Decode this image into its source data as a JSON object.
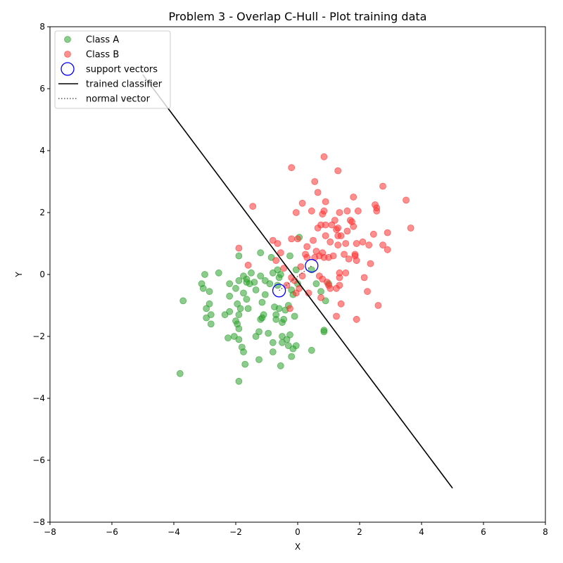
{
  "chart_data": {
    "type": "scatter",
    "title": "Problem 3 - Overlap C-Hull - Plot training data",
    "xlabel": "X",
    "ylabel": "Y",
    "xlim": [
      -8,
      8
    ],
    "ylim": [
      -8,
      8
    ],
    "xticks": [
      -8,
      -6,
      -4,
      -2,
      0,
      2,
      4,
      6,
      8
    ],
    "yticks": [
      -8,
      -6,
      -4,
      -2,
      0,
      2,
      4,
      6,
      8
    ],
    "xtick_labels": [
      "−8",
      "−6",
      "−4",
      "−2",
      "0",
      "2",
      "4",
      "6",
      "8"
    ],
    "ytick_labels": [
      "−8",
      "−6",
      "−4",
      "−2",
      "0",
      "2",
      "4",
      "6",
      "8"
    ],
    "grid": false,
    "legend_position": "top-left",
    "legend": [
      {
        "label": "Class A",
        "kind": "marker",
        "color": "#2ca02c"
      },
      {
        "label": "Class B",
        "kind": "marker",
        "color": "#ff3333"
      },
      {
        "label": "support vectors",
        "kind": "ring",
        "color": "#0000ff"
      },
      {
        "label": "trained classifier",
        "kind": "line",
        "color": "#000000"
      },
      {
        "label": "normal vector",
        "kind": "dotted",
        "color": "#555555"
      }
    ],
    "series": [
      {
        "name": "Class A",
        "color": "#2ca02c",
        "points": [
          [
            -3.8,
            -3.2
          ],
          [
            -3.7,
            -0.85
          ],
          [
            -3.1,
            -0.3
          ],
          [
            -3.05,
            -0.45
          ],
          [
            -3.0,
            0.0
          ],
          [
            -2.95,
            -1.1
          ],
          [
            -2.95,
            -1.4
          ],
          [
            -2.85,
            -0.55
          ],
          [
            -2.85,
            -0.95
          ],
          [
            -2.8,
            -1.3
          ],
          [
            -2.8,
            -1.6
          ],
          [
            -2.55,
            0.05
          ],
          [
            -2.35,
            -1.3
          ],
          [
            -2.25,
            -2.05
          ],
          [
            -2.2,
            -0.3
          ],
          [
            -2.2,
            -0.7
          ],
          [
            -2.2,
            -1.2
          ],
          [
            -2.05,
            -2.0
          ],
          [
            -2.0,
            -0.45
          ],
          [
            -2.0,
            -1.5
          ],
          [
            -1.95,
            -1.6
          ],
          [
            -1.95,
            -0.95
          ],
          [
            -1.9,
            -0.2
          ],
          [
            -1.9,
            -1.3
          ],
          [
            -1.9,
            -1.75
          ],
          [
            -1.9,
            -2.1
          ],
          [
            -1.9,
            0.6
          ],
          [
            -1.9,
            -3.45
          ],
          [
            -1.85,
            -1.1
          ],
          [
            -1.8,
            -2.35
          ],
          [
            -1.75,
            -0.05
          ],
          [
            -1.75,
            -0.6
          ],
          [
            -1.75,
            -2.5
          ],
          [
            -1.7,
            -2.9
          ],
          [
            -1.65,
            -0.15
          ],
          [
            -1.65,
            -0.25
          ],
          [
            -1.65,
            -0.8
          ],
          [
            -1.6,
            -1.1
          ],
          [
            -1.55,
            -0.3
          ],
          [
            -1.5,
            0.05
          ],
          [
            -1.4,
            -0.25
          ],
          [
            -1.35,
            -0.5
          ],
          [
            -1.35,
            -2.0
          ],
          [
            -1.25,
            -1.85
          ],
          [
            -1.25,
            -2.75
          ],
          [
            -1.2,
            -0.05
          ],
          [
            -1.2,
            -1.45
          ],
          [
            -1.2,
            0.7
          ],
          [
            -1.15,
            -0.9
          ],
          [
            -1.15,
            -1.4
          ],
          [
            -1.1,
            -1.3
          ],
          [
            -1.05,
            -0.2
          ],
          [
            -1.05,
            -0.65
          ],
          [
            -0.95,
            -1.9
          ],
          [
            -0.9,
            -0.3
          ],
          [
            -0.85,
            0.55
          ],
          [
            -0.8,
            -2.2
          ],
          [
            -0.8,
            -2.5
          ],
          [
            -0.8,
            0.05
          ],
          [
            -0.75,
            -1.05
          ],
          [
            -0.7,
            -1.3
          ],
          [
            -0.7,
            -1.45
          ],
          [
            -0.65,
            0.15
          ],
          [
            -0.65,
            -0.35
          ],
          [
            -0.6,
            -0.1
          ],
          [
            -0.6,
            -1.1
          ],
          [
            -0.55,
            0.0
          ],
          [
            -0.55,
            -2.95
          ],
          [
            -0.5,
            -1.55
          ],
          [
            -0.5,
            -2.0
          ],
          [
            -0.5,
            -2.2
          ],
          [
            -0.45,
            -1.45
          ],
          [
            -0.4,
            -1.15
          ],
          [
            -0.35,
            -2.1
          ],
          [
            -0.3,
            -1.0
          ],
          [
            -0.3,
            -2.3
          ],
          [
            -0.25,
            -1.95
          ],
          [
            -0.25,
            0.6
          ],
          [
            -0.2,
            -0.5
          ],
          [
            -0.2,
            -2.65
          ],
          [
            -0.15,
            -2.4
          ],
          [
            -0.15,
            -0.65
          ],
          [
            -0.1,
            -1.35
          ],
          [
            -0.05,
            -2.3
          ],
          [
            -0.05,
            0.15
          ],
          [
            0.0,
            -0.3
          ],
          [
            0.05,
            1.2
          ],
          [
            0.45,
            0.15
          ],
          [
            0.45,
            -2.45
          ],
          [
            0.6,
            -0.3
          ],
          [
            0.75,
            -0.55
          ],
          [
            0.85,
            -1.8
          ],
          [
            0.85,
            -1.85
          ],
          [
            0.9,
            -0.85
          ],
          [
            1.0,
            -0.3
          ]
        ]
      },
      {
        "name": "Class B",
        "color": "#ff3333",
        "points": [
          [
            -1.9,
            0.85
          ],
          [
            -1.6,
            0.3
          ],
          [
            -1.45,
            2.2
          ],
          [
            -0.8,
            1.1
          ],
          [
            -0.7,
            0.45
          ],
          [
            -0.65,
            1.0
          ],
          [
            -0.55,
            0.7
          ],
          [
            -0.45,
            0.2
          ],
          [
            -0.35,
            -0.35
          ],
          [
            -0.25,
            -1.1
          ],
          [
            -0.2,
            -0.1
          ],
          [
            -0.2,
            1.15
          ],
          [
            -0.2,
            3.45
          ],
          [
            -0.1,
            -0.2
          ],
          [
            -0.05,
            -0.6
          ],
          [
            -0.05,
            2.0
          ],
          [
            0.0,
            1.15
          ],
          [
            0.05,
            -0.45
          ],
          [
            0.1,
            0.25
          ],
          [
            0.15,
            -0.05
          ],
          [
            0.15,
            2.3
          ],
          [
            0.25,
            0.65
          ],
          [
            0.3,
            0.55
          ],
          [
            0.3,
            0.9
          ],
          [
            0.35,
            -0.6
          ],
          [
            0.45,
            2.05
          ],
          [
            0.5,
            1.1
          ],
          [
            0.55,
            0.55
          ],
          [
            0.55,
            3.0
          ],
          [
            0.6,
            0.75
          ],
          [
            0.65,
            1.5
          ],
          [
            0.65,
            2.65
          ],
          [
            0.7,
            -0.05
          ],
          [
            0.7,
            0.6
          ],
          [
            0.75,
            -0.75
          ],
          [
            0.75,
            1.6
          ],
          [
            0.8,
            -0.15
          ],
          [
            0.8,
            0.7
          ],
          [
            0.8,
            1.95
          ],
          [
            0.85,
            0.55
          ],
          [
            0.85,
            2.05
          ],
          [
            0.85,
            3.8
          ],
          [
            0.9,
            1.6
          ],
          [
            0.9,
            1.25
          ],
          [
            0.9,
            2.35
          ],
          [
            0.95,
            -0.25
          ],
          [
            1.0,
            0.55
          ],
          [
            1.0,
            -0.35
          ],
          [
            1.05,
            1.05
          ],
          [
            1.05,
            -0.45
          ],
          [
            1.1,
            1.6
          ],
          [
            1.15,
            0.6
          ],
          [
            1.2,
            1.75
          ],
          [
            1.25,
            -1.35
          ],
          [
            1.25,
            -0.45
          ],
          [
            1.25,
            1.45
          ],
          [
            1.3,
            0.95
          ],
          [
            1.3,
            1.25
          ],
          [
            1.3,
            1.5
          ],
          [
            1.3,
            3.35
          ],
          [
            1.35,
            -0.1
          ],
          [
            1.35,
            -0.35
          ],
          [
            1.35,
            0.05
          ],
          [
            1.35,
            2.0
          ],
          [
            1.4,
            -0.95
          ],
          [
            1.4,
            1.25
          ],
          [
            1.5,
            0.65
          ],
          [
            1.55,
            0.05
          ],
          [
            1.55,
            1.0
          ],
          [
            1.6,
            1.4
          ],
          [
            1.6,
            2.05
          ],
          [
            1.65,
            0.5
          ],
          [
            1.7,
            1.75
          ],
          [
            1.75,
            1.7
          ],
          [
            1.8,
            2.5
          ],
          [
            1.8,
            1.55
          ],
          [
            1.85,
            0.6
          ],
          [
            1.85,
            0.65
          ],
          [
            1.9,
            -1.45
          ],
          [
            1.9,
            0.45
          ],
          [
            1.9,
            1.0
          ],
          [
            1.95,
            2.05
          ],
          [
            2.1,
            1.05
          ],
          [
            2.15,
            -0.1
          ],
          [
            2.25,
            -0.55
          ],
          [
            2.3,
            0.95
          ],
          [
            2.35,
            0.35
          ],
          [
            2.45,
            1.3
          ],
          [
            2.5,
            2.25
          ],
          [
            2.55,
            2.05
          ],
          [
            2.55,
            2.15
          ],
          [
            2.6,
            -1.0
          ],
          [
            2.75,
            0.95
          ],
          [
            2.75,
            2.85
          ],
          [
            2.9,
            0.8
          ],
          [
            2.9,
            1.35
          ],
          [
            3.5,
            2.4
          ],
          [
            3.65,
            1.5
          ]
        ]
      }
    ],
    "support_vectors": {
      "name": "support vectors",
      "color": "#0000ff",
      "points": [
        [
          -0.6,
          -0.52
        ],
        [
          0.45,
          0.28
        ]
      ]
    },
    "classifier": {
      "name": "trained classifier",
      "color": "#000000",
      "x": [
        -5,
        5
      ],
      "y": [
        6.45,
        -6.9
      ]
    },
    "normal_vector": {
      "name": "normal vector",
      "color": "#555555",
      "x": [
        -0.6,
        0.45
      ],
      "y": [
        -0.52,
        0.28
      ]
    }
  }
}
